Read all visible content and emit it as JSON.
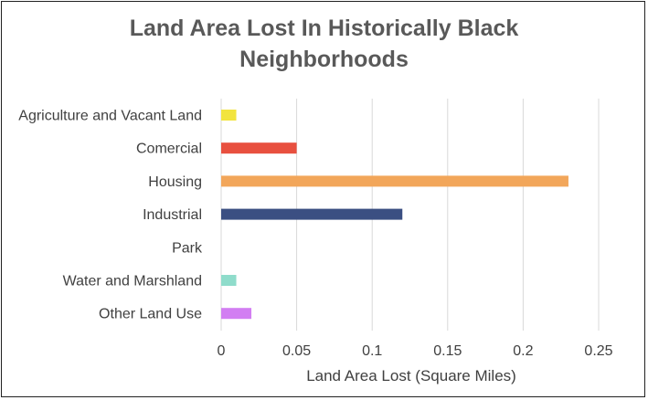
{
  "chart_data": {
    "type": "bar",
    "orientation": "horizontal",
    "title": "Land Area Lost In Historically Black Neighborhoods",
    "title_lines": [
      "Land Area Lost In Historically Black",
      "Neighborhoods"
    ],
    "xlabel": "Land Area Lost (Square Miles)",
    "ylabel": "",
    "categories": [
      "Agriculture and Vacant Land",
      "Comercial",
      "Housing",
      "Industrial",
      "Park",
      "Water and Marshland",
      "Other Land Use"
    ],
    "values": [
      0.01,
      0.05,
      0.23,
      0.12,
      0,
      0.01,
      0.02
    ],
    "colors": [
      "#F2E43E",
      "#E8503F",
      "#F2A65A",
      "#3B4F82",
      "#B0B0B0",
      "#8FDCCB",
      "#D27EF2"
    ],
    "xlim": [
      0,
      0.25
    ],
    "xticks": [
      "0",
      "0.05",
      "0.1",
      "0.15",
      "0.2",
      "0.25"
    ],
    "grid": true,
    "legend": "none"
  }
}
